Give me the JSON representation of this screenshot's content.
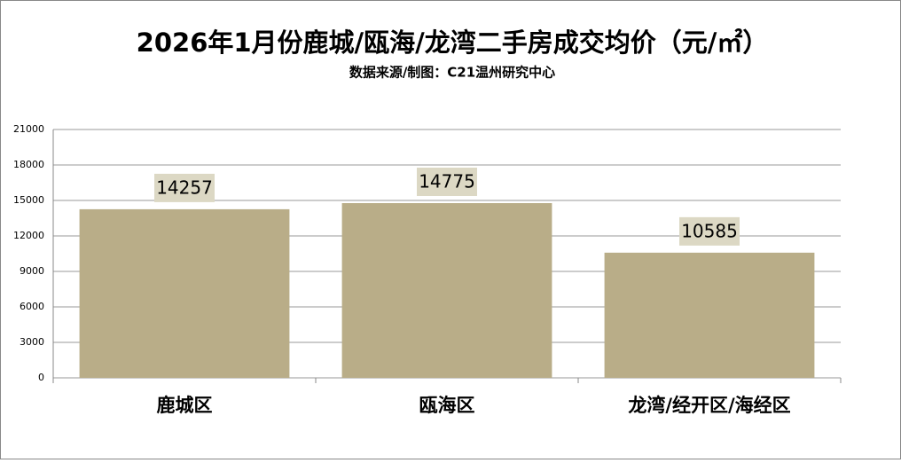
{
  "chart_data": {
    "type": "bar",
    "title": "2026年1月份鹿城/瓯海/龙湾二手房成交均价（元/㎡）",
    "subtitle": "数据来源/制图：C21温州研究中心",
    "categories": [
      "鹿城区",
      "瓯海区",
      "龙湾/经开区/海经区"
    ],
    "values": [
      14257,
      14775,
      10585
    ],
    "color": "#b9ad88",
    "ylim": [
      0,
      21000
    ],
    "yticks": [
      0,
      3000,
      6000,
      9000,
      12000,
      15000,
      18000,
      21000
    ],
    "grid": true
  }
}
